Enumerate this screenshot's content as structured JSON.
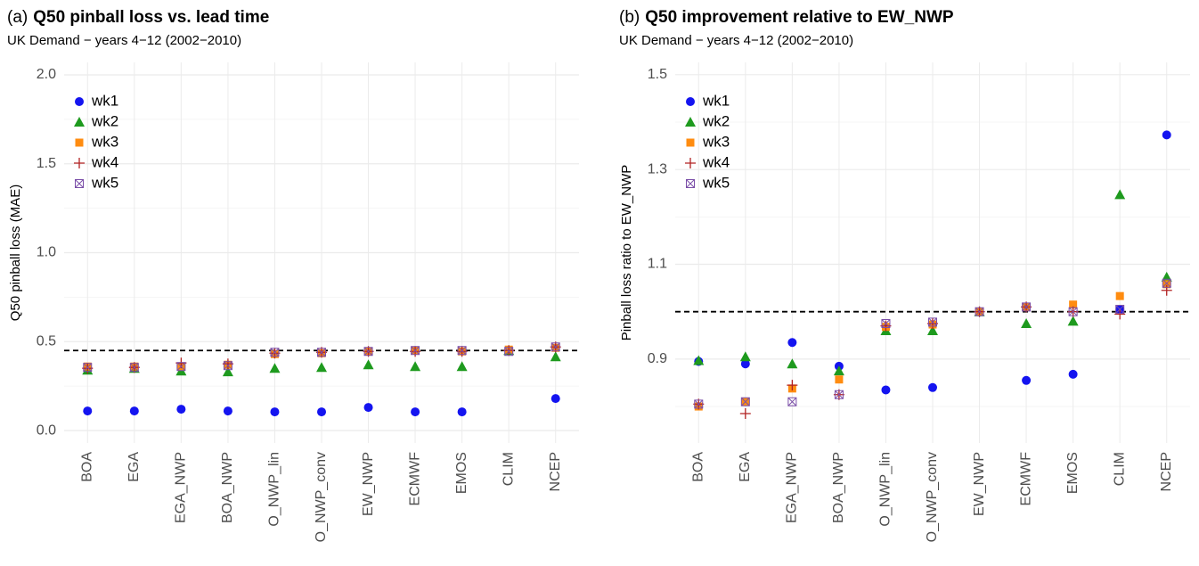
{
  "chart_data": [
    {
      "type": "scatter",
      "title_prefix": "(a)",
      "title": "Q50 pinball loss vs. lead time",
      "subtitle": "UK Demand − years 4−12 (2002−2010)",
      "y_label": "Q50 pinball loss (MAE)",
      "categories": [
        "BOA",
        "EGA",
        "EGA_NWP",
        "BOA_NWP",
        "O_NWP_lin",
        "O_NWP_conv",
        "EW_NWP",
        "ECMWF",
        "EMOS",
        "CLIM",
        "NCEP"
      ],
      "series": [
        {
          "name": "wk1",
          "color": "#1414f0",
          "shape": "circle",
          "values": [
            0.11,
            0.11,
            0.12,
            0.11,
            0.105,
            0.105,
            0.13,
            0.105,
            0.105,
            0.45,
            0.18
          ]
        },
        {
          "name": "wk2",
          "color": "#1e9a1e",
          "shape": "triangle",
          "values": [
            0.34,
            0.35,
            0.335,
            0.33,
            0.35,
            0.355,
            0.37,
            0.36,
            0.36,
            0.45,
            0.415
          ]
        },
        {
          "name": "wk3",
          "color": "#ff8c10",
          "shape": "square",
          "values": [
            0.36,
            0.36,
            0.36,
            0.37,
            0.43,
            0.435,
            0.445,
            0.45,
            0.445,
            0.455,
            0.465
          ]
        },
        {
          "name": "wk4",
          "color": "#b22222",
          "shape": "plus",
          "values": [
            0.35,
            0.355,
            0.38,
            0.375,
            0.435,
            0.44,
            0.445,
            0.445,
            0.445,
            0.45,
            0.47
          ]
        },
        {
          "name": "wk5",
          "color": "#7b4fa8",
          "shape": "boxcross",
          "values": [
            0.355,
            0.355,
            0.36,
            0.365,
            0.44,
            0.44,
            0.445,
            0.45,
            0.45,
            0.445,
            0.47
          ]
        }
      ],
      "ylim": [
        -0.07,
        2.07
      ],
      "yticks": [
        {
          "value": 0,
          "label": "0.0"
        },
        0.5,
        {
          "value": 1,
          "label": "1.0"
        },
        1.5,
        {
          "value": 2,
          "label": "2.0"
        }
      ],
      "minor_yticks": [
        0.25,
        0.75,
        1.25,
        1.75
      ],
      "hline": 0.45,
      "grid": true,
      "legend": "top-left"
    },
    {
      "type": "scatter",
      "title_prefix": "(b)",
      "title": "Q50 improvement relative to EW_NWP",
      "subtitle": "UK Demand − years 4−12 (2002−2010)",
      "y_label": "Pinball loss ratio to EW_NWP",
      "categories": [
        "BOA",
        "EGA",
        "EGA_NWP",
        "BOA_NWP",
        "O_NWP_lin",
        "O_NWP_conv",
        "EW_NWP",
        "ECMWF",
        "EMOS",
        "CLIM",
        "NCEP"
      ],
      "series": [
        {
          "name": "wk1",
          "color": "#1414f0",
          "shape": "circle",
          "values": [
            0.895,
            0.89,
            0.935,
            0.885,
            0.835,
            0.84,
            1.0,
            0.855,
            0.868,
            1.005,
            1.373
          ]
        },
        {
          "name": "wk2",
          "color": "#1e9a1e",
          "shape": "triangle",
          "values": [
            0.897,
            0.905,
            0.89,
            0.875,
            0.96,
            0.96,
            1.0,
            0.975,
            0.98,
            1.247,
            1.073
          ]
        },
        {
          "name": "wk3",
          "color": "#ff8c10",
          "shape": "square",
          "values": [
            0.8,
            0.81,
            0.838,
            0.857,
            0.968,
            0.973,
            1.0,
            1.01,
            1.015,
            1.033,
            1.058
          ]
        },
        {
          "name": "wk4",
          "color": "#b22222",
          "shape": "plus",
          "values": [
            0.805,
            0.785,
            0.845,
            0.825,
            0.97,
            0.975,
            1.0,
            1.01,
            1.0,
            0.995,
            1.045
          ]
        },
        {
          "name": "wk5",
          "color": "#7b4fa8",
          "shape": "boxcross",
          "values": [
            0.805,
            0.81,
            0.81,
            0.825,
            0.975,
            0.978,
            1.0,
            1.01,
            1.0,
            1.005,
            1.06
          ]
        }
      ],
      "ylim": [
        0.723,
        1.526
      ],
      "yticks": [
        0.9,
        1.1,
        1.3,
        1.5
      ],
      "minor_yticks": [
        0.8,
        1.0,
        1.2,
        1.4
      ],
      "hline": 1.0,
      "grid": true,
      "legend": "top-left"
    }
  ]
}
